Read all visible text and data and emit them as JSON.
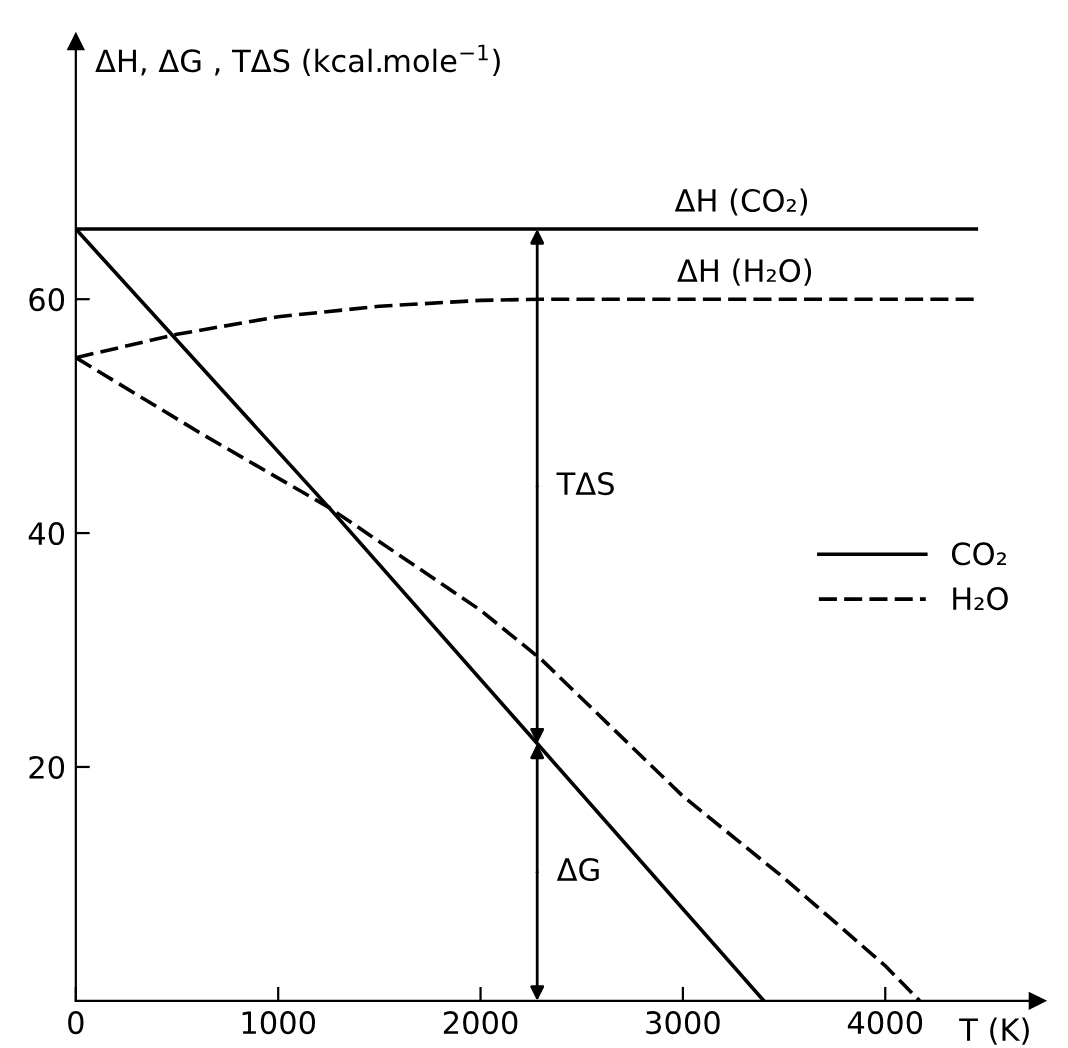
{
  "chart_data": {
    "type": "line",
    "xlabel": "T (K)",
    "ylabel": "ΔH, ΔG , TΔS (kcal.mole$^{−1}$)",
    "xlim": [
      0,
      4750
    ],
    "ylim": [
      0,
      82
    ],
    "xticks": [
      0,
      1000,
      2000,
      3000,
      4000
    ],
    "yticks": [
      20,
      40,
      60
    ],
    "grid": false,
    "legend": "right",
    "marker": "none",
    "series": [
      {
        "color": "#000000",
        "line_style": "solid",
        "x": [
          0,
          4450
        ],
        "values": [
          66,
          66
        ]
      },
      {
        "color": "#000000",
        "line_style": "dashed",
        "x": [
          0,
          500,
          1000,
          1500,
          2000,
          2300,
          4470
        ],
        "values": [
          55,
          57,
          58.5,
          59.4,
          59.9,
          60,
          60
        ]
      },
      {
        "name": "CO₂",
        "color": "#000000",
        "line_style": "solid",
        "x": [
          0,
          1250,
          2280,
          3400
        ],
        "values": [
          66,
          42.2,
          22,
          0
        ]
      },
      {
        "name": "H₂O",
        "color": "#000000",
        "line_style": "dashed",
        "x": [
          0,
          630,
          1250,
          2000,
          2300,
          3000,
          3500,
          4000,
          4170
        ],
        "values": [
          55,
          48.4,
          42.2,
          33.4,
          29.2,
          17.5,
          10.5,
          3,
          0
        ]
      }
    ],
    "annotations": [
      "ΔH (CO₂)",
      "ΔH (H₂O)",
      {
        "text": "TΔS",
        "x": 2280,
        "y": 66
      },
      {
        "text": "ΔG",
        "x": 2280,
        "y": 22
      }
    ]
  }
}
